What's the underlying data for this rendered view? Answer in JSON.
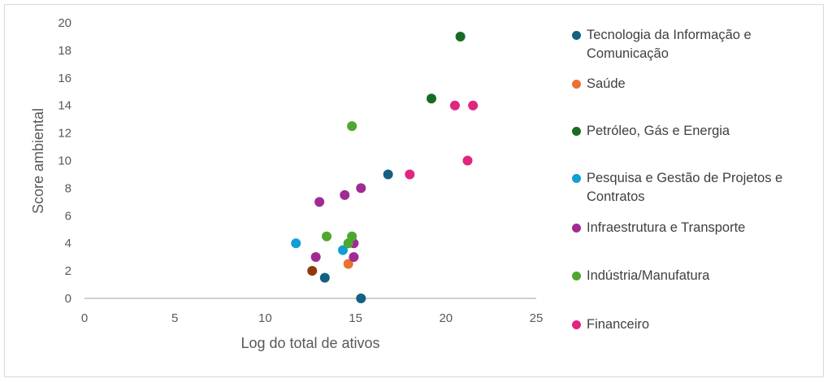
{
  "chart_data": {
    "type": "scatter",
    "xlabel": "Log do total de ativos",
    "ylabel": "Score ambiental",
    "xlim": [
      0,
      25
    ],
    "ylim": [
      0,
      20
    ],
    "xticks": [
      0,
      5,
      10,
      15,
      20,
      25
    ],
    "yticks": [
      0,
      2,
      4,
      6,
      8,
      10,
      12,
      14,
      16,
      18,
      20
    ],
    "grid": false,
    "legend_position": "right",
    "series": [
      {
        "name": "Tecnologia da Informação e Comunicação",
        "color": "#156082",
        "points": [
          [
            13.3,
            1.5
          ],
          [
            15.3,
            0
          ],
          [
            16.8,
            9
          ]
        ]
      },
      {
        "name": "Saúde",
        "color": "#E97132",
        "points": [
          [
            14.6,
            2.5
          ]
        ]
      },
      {
        "name": "Petróleo, Gás e Energia",
        "color": "#196B24",
        "points": [
          [
            20.8,
            19
          ],
          [
            19.2,
            14.5
          ]
        ]
      },
      {
        "name": "Pesquisa e Gestão de Projetos e Contratos",
        "color": "#0F9ED5",
        "points": [
          [
            11.7,
            4
          ],
          [
            14.3,
            3.5
          ]
        ]
      },
      {
        "name": "Infraestrutura e Transporte",
        "color": "#A02B93",
        "points": [
          [
            13.0,
            7
          ],
          [
            14.4,
            7.5
          ],
          [
            15.3,
            8
          ],
          [
            14.9,
            4
          ],
          [
            12.8,
            3
          ],
          [
            14.9,
            3
          ]
        ]
      },
      {
        "name": "Indústria/Manufatura",
        "color": "#4EA72E",
        "points": [
          [
            13.4,
            4.5
          ],
          [
            14.8,
            4.5
          ],
          [
            14.6,
            4
          ],
          [
            14.8,
            12.5
          ]
        ]
      },
      {
        "name": "Financeiro",
        "color": "#E0267F",
        "points": [
          [
            20.5,
            14
          ],
          [
            21.5,
            14
          ],
          [
            21.2,
            10
          ],
          [
            18.0,
            9
          ]
        ]
      },
      {
        "name": "",
        "color": "#8F3A0C",
        "points": [
          [
            12.6,
            2
          ]
        ]
      }
    ]
  }
}
